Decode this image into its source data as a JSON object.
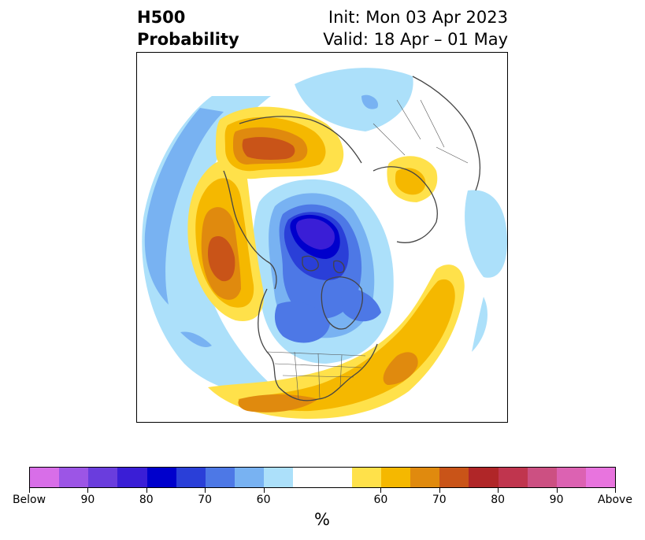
{
  "title": {
    "left_line1": "H500",
    "left_line2": "Probability",
    "right_line1": "Init: Mon 03 Apr 2023",
    "right_line2": "Valid: 18 Apr – 01 May"
  },
  "colorbar": {
    "unit": "%",
    "colors": [
      "#d86ee8",
      "#9c55e6",
      "#6a3ddd",
      "#3a1ed6",
      "#0000cc",
      "#2a3fd8",
      "#4d78e6",
      "#78b2f2",
      "#ace0fa",
      "#ffffff",
      "#ffffff",
      "#ffe14a",
      "#f5b800",
      "#e08a0e",
      "#c95418",
      "#b02628",
      "#c0354e",
      "#cc5082",
      "#dc62b2",
      "#e874de"
    ],
    "tick_labels": [
      "Below",
      "90",
      "80",
      "70",
      "60",
      "60",
      "70",
      "80",
      "90",
      "Above"
    ],
    "tick_fractions": [
      0.0,
      0.1,
      0.2,
      0.3,
      0.4,
      0.6,
      0.7,
      0.8,
      0.9,
      1.0
    ]
  },
  "legend_colors": {
    "blue_light": "#ace0fa",
    "blue_mid": "#78b2f2",
    "blue_60": "#4d78e6",
    "blue_70": "#2a3fd8",
    "blue_80": "#0000cc",
    "blue_90": "#3a1ed6",
    "yellow": "#ffe14a",
    "gold": "#f5b800",
    "orange": "#e08a0e",
    "dark_orange": "#c95418",
    "coast": "#444444"
  }
}
